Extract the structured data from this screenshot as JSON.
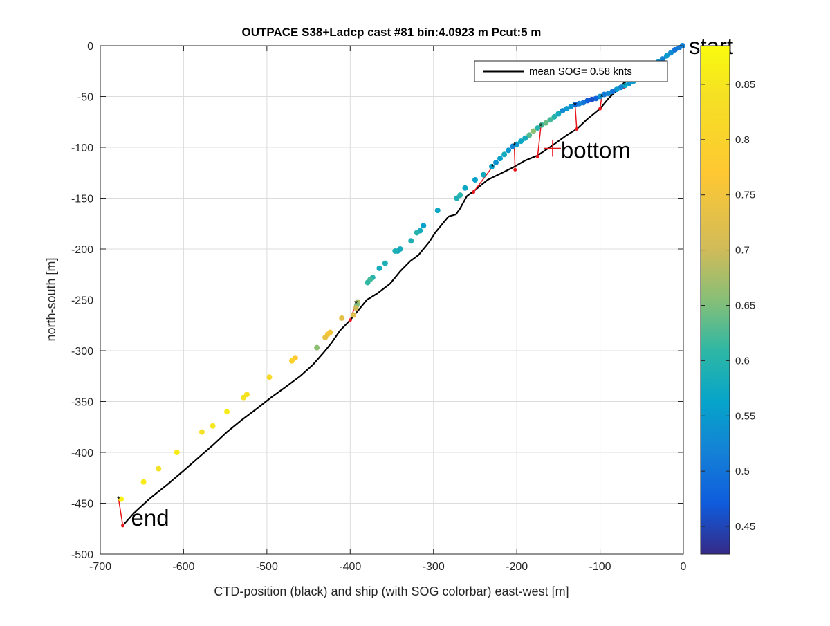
{
  "chart_data": {
    "type": "scatter",
    "title": "OUTPACE S38+Ladcp cast #81 bin:4.0923 m  Pcut:5 m",
    "xlabel": "CTD-position (black) and ship (with SOG colorbar) east-west [m]",
    "ylabel": "north-south [m]",
    "xlim": [
      -700,
      0
    ],
    "ylim": [
      -500,
      0
    ],
    "xticks": [
      -700,
      -600,
      -500,
      -400,
      -300,
      -200,
      -100,
      0
    ],
    "yticks": [
      0,
      -50,
      -100,
      -150,
      -200,
      -250,
      -300,
      -350,
      -400,
      -450,
      -500
    ],
    "grid": true,
    "legend": {
      "position": "top-right",
      "entries": [
        "mean SOG=  0.58 knts"
      ]
    },
    "colorbar": {
      "range": [
        0.425,
        0.885
      ],
      "ticks": [
        0.45,
        0.5,
        0.55,
        0.6,
        0.65,
        0.7,
        0.75,
        0.8,
        0.85
      ],
      "colormap": "parula"
    },
    "annotations": [
      {
        "text": "start",
        "x": 0,
        "y": 0
      },
      {
        "text": "bottom",
        "x": -157,
        "y": -101
      },
      {
        "text": "end",
        "x": -673,
        "y": -472
      }
    ],
    "ctd_track": {
      "name": "CTD-position",
      "color": "#000000",
      "points": [
        [
          0,
          0
        ],
        [
          -15,
          -8
        ],
        [
          -30,
          -17
        ],
        [
          -50,
          -25
        ],
        [
          -70,
          -36
        ],
        [
          -90,
          -52
        ],
        [
          -100,
          -62
        ],
        [
          -115,
          -72
        ],
        [
          -128,
          -82
        ],
        [
          -140,
          -88
        ],
        [
          -157,
          -98
        ],
        [
          -175,
          -108
        ],
        [
          -190,
          -113
        ],
        [
          -205,
          -120
        ],
        [
          -220,
          -126
        ],
        [
          -235,
          -132
        ],
        [
          -250,
          -142
        ],
        [
          -260,
          -148
        ],
        [
          -268,
          -160
        ],
        [
          -273,
          -166
        ],
        [
          -282,
          -168
        ],
        [
          -290,
          -176
        ],
        [
          -298,
          -184
        ],
        [
          -305,
          -193
        ],
        [
          -318,
          -206
        ],
        [
          -328,
          -212
        ],
        [
          -340,
          -222
        ],
        [
          -352,
          -234
        ],
        [
          -368,
          -244
        ],
        [
          -380,
          -250
        ],
        [
          -388,
          -258
        ],
        [
          -400,
          -270
        ],
        [
          -412,
          -280
        ],
        [
          -423,
          -293
        ],
        [
          -432,
          -302
        ],
        [
          -445,
          -314
        ],
        [
          -460,
          -325
        ],
        [
          -478,
          -336
        ],
        [
          -495,
          -346
        ],
        [
          -512,
          -357
        ],
        [
          -530,
          -368
        ],
        [
          -548,
          -380
        ],
        [
          -565,
          -393
        ],
        [
          -582,
          -405
        ],
        [
          -600,
          -418
        ],
        [
          -620,
          -432
        ],
        [
          -640,
          -445
        ],
        [
          -660,
          -460
        ],
        [
          -673,
          -472
        ]
      ]
    },
    "ship_track": {
      "name": "ship",
      "color_by": "SOG [knts]",
      "points": [
        {
          "x": -1,
          "y": 0,
          "sog": 0.52
        },
        {
          "x": -5,
          "y": -2,
          "sog": 0.51
        },
        {
          "x": -10,
          "y": -4,
          "sog": 0.5
        },
        {
          "x": -15,
          "y": -7,
          "sog": 0.53
        },
        {
          "x": -20,
          "y": -10,
          "sog": 0.55
        },
        {
          "x": -25,
          "y": -13,
          "sog": 0.52
        },
        {
          "x": -30,
          "y": -16,
          "sog": 0.54
        },
        {
          "x": -35,
          "y": -20,
          "sog": 0.56
        },
        {
          "x": -40,
          "y": -24,
          "sog": 0.55
        },
        {
          "x": -45,
          "y": -27,
          "sog": 0.52
        },
        {
          "x": -50,
          "y": -30,
          "sog": 0.56
        },
        {
          "x": -55,
          "y": -33,
          "sog": 0.58
        },
        {
          "x": -60,
          "y": -35,
          "sog": 0.55
        },
        {
          "x": -65,
          "y": -37,
          "sog": 0.54
        },
        {
          "x": -70,
          "y": -39,
          "sog": 0.57
        },
        {
          "x": -75,
          "y": -41,
          "sog": 0.52
        },
        {
          "x": -80,
          "y": -43,
          "sog": 0.55
        },
        {
          "x": -85,
          "y": -45,
          "sog": 0.5
        },
        {
          "x": -90,
          "y": -47,
          "sog": 0.53
        },
        {
          "x": -95,
          "y": -48,
          "sog": 0.51
        },
        {
          "x": -100,
          "y": -50,
          "sog": 0.54
        },
        {
          "x": -105,
          "y": -52,
          "sog": 0.48
        },
        {
          "x": -110,
          "y": -53,
          "sog": 0.46
        },
        {
          "x": -115,
          "y": -54,
          "sog": 0.47
        },
        {
          "x": -120,
          "y": -56,
          "sog": 0.5
        },
        {
          "x": -125,
          "y": -57,
          "sog": 0.52
        },
        {
          "x": -130,
          "y": -58,
          "sog": 0.49
        },
        {
          "x": -135,
          "y": -60,
          "sog": 0.54
        },
        {
          "x": -140,
          "y": -62,
          "sog": 0.55
        },
        {
          "x": -145,
          "y": -64,
          "sog": 0.53
        },
        {
          "x": -150,
          "y": -67,
          "sog": 0.58
        },
        {
          "x": -155,
          "y": -70,
          "sog": 0.6
        },
        {
          "x": -160,
          "y": -73,
          "sog": 0.62
        },
        {
          "x": -165,
          "y": -76,
          "sog": 0.64
        },
        {
          "x": -170,
          "y": -78,
          "sog": 0.62
        },
        {
          "x": -175,
          "y": -81,
          "sog": 0.6
        },
        {
          "x": -180,
          "y": -84,
          "sog": 0.66
        },
        {
          "x": -185,
          "y": -88,
          "sog": 0.63
        },
        {
          "x": -190,
          "y": -91,
          "sog": 0.58
        },
        {
          "x": -195,
          "y": -94,
          "sog": 0.57
        },
        {
          "x": -200,
          "y": -97,
          "sog": 0.55
        },
        {
          "x": -205,
          "y": -99,
          "sog": 0.52
        },
        {
          "x": -210,
          "y": -103,
          "sog": 0.55
        },
        {
          "x": -215,
          "y": -107,
          "sog": 0.58
        },
        {
          "x": -220,
          "y": -111,
          "sog": 0.56
        },
        {
          "x": -225,
          "y": -115,
          "sog": 0.54
        },
        {
          "x": -230,
          "y": -119,
          "sog": 0.56
        },
        {
          "x": -240,
          "y": -127,
          "sog": 0.58
        },
        {
          "x": -250,
          "y": -132,
          "sog": 0.56
        },
        {
          "x": -262,
          "y": -140,
          "sog": 0.57
        },
        {
          "x": -268,
          "y": -147,
          "sog": 0.6
        },
        {
          "x": -272,
          "y": -150,
          "sog": 0.59
        },
        {
          "x": -295,
          "y": -162,
          "sog": 0.57
        },
        {
          "x": -312,
          "y": -177,
          "sog": 0.56
        },
        {
          "x": -316,
          "y": -182,
          "sog": 0.58
        },
        {
          "x": -320,
          "y": -184,
          "sog": 0.6
        },
        {
          "x": -327,
          "y": -192,
          "sog": 0.59
        },
        {
          "x": -340,
          "y": -200,
          "sog": 0.58
        },
        {
          "x": -343,
          "y": -202,
          "sog": 0.58
        },
        {
          "x": -346,
          "y": -202,
          "sog": 0.59
        },
        {
          "x": -358,
          "y": -214,
          "sog": 0.59
        },
        {
          "x": -365,
          "y": -219,
          "sog": 0.58
        },
        {
          "x": -373,
          "y": -228,
          "sog": 0.6
        },
        {
          "x": -376,
          "y": -230,
          "sog": 0.62
        },
        {
          "x": -379,
          "y": -233,
          "sog": 0.61
        },
        {
          "x": -391,
          "y": -252,
          "sog": 0.68
        },
        {
          "x": -392,
          "y": -255,
          "sog": 0.65
        },
        {
          "x": -393,
          "y": -258,
          "sog": 0.7
        },
        {
          "x": -396,
          "y": -265,
          "sog": 0.72
        },
        {
          "x": -410,
          "y": -268,
          "sog": 0.73
        },
        {
          "x": -424,
          "y": -282,
          "sog": 0.75
        },
        {
          "x": -427,
          "y": -284,
          "sog": 0.76
        },
        {
          "x": -430,
          "y": -287,
          "sog": 0.74
        },
        {
          "x": -440,
          "y": -297,
          "sog": 0.66
        },
        {
          "x": -466,
          "y": -307,
          "sog": 0.77
        },
        {
          "x": -470,
          "y": -310,
          "sog": 0.8
        },
        {
          "x": -497,
          "y": -326,
          "sog": 0.82
        },
        {
          "x": -524,
          "y": -343,
          "sog": 0.84
        },
        {
          "x": -528,
          "y": -346,
          "sog": 0.84
        },
        {
          "x": -548,
          "y": -360,
          "sog": 0.86
        },
        {
          "x": -565,
          "y": -374,
          "sog": 0.85
        },
        {
          "x": -578,
          "y": -380,
          "sog": 0.84
        },
        {
          "x": -608,
          "y": -400,
          "sog": 0.86
        },
        {
          "x": -630,
          "y": -416,
          "sog": 0.84
        },
        {
          "x": -648,
          "y": -429,
          "sog": 0.86
        },
        {
          "x": -675,
          "y": -446,
          "sog": 0.87
        }
      ]
    },
    "position_links": [
      {
        "ship": [
          -72,
          -38
        ],
        "ctd": [
          -72,
          -41
        ]
      },
      {
        "ship": [
          -98,
          -50
        ],
        "ctd": [
          -100,
          -62
        ]
      },
      {
        "ship": [
          -130,
          -58
        ],
        "ctd": [
          -128,
          -82
        ]
      },
      {
        "ship": [
          -171,
          -79
        ],
        "ctd": [
          -175,
          -109
        ]
      },
      {
        "ship": [
          -203,
          -98
        ],
        "ctd": [
          -202,
          -122
        ]
      },
      {
        "ship": [
          -229,
          -119
        ],
        "ctd": [
          -252,
          -144
        ]
      },
      {
        "ship": [
          -393,
          -253
        ],
        "ctd": [
          -400,
          -270
        ]
      },
      {
        "ship": [
          -678,
          -446
        ],
        "ctd": [
          -673,
          -472
        ]
      }
    ]
  }
}
